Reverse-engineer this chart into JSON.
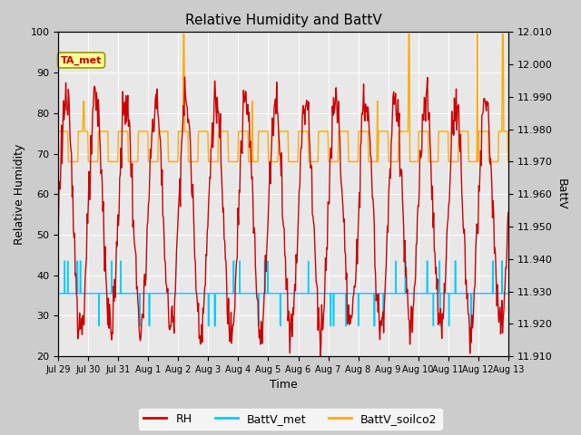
{
  "title": "Relative Humidity and BattV",
  "xlabel": "Time",
  "ylabel_left": "Relative Humidity",
  "ylabel_right": "BattV",
  "ylim_left": [
    20,
    100
  ],
  "ylim_right": [
    11.91,
    12.01
  ],
  "fig_bg_color": "#cccccc",
  "plot_bg_color": "#e8e8e8",
  "annotation_text": "TA_met",
  "annotation_color": "#cc0000",
  "annotation_bg": "#ffff99",
  "annotation_edge": "#999900",
  "rh_color": "#cc0000",
  "battv_met_color": "#00ccff",
  "battv_soilco2_color": "#ffaa00",
  "legend_rh_label": "RH",
  "legend_met_label": "BattV_met",
  "legend_soilco2_label": "BattV_soilco2",
  "x_tick_labels": [
    "Jul 29",
    "Jul 30",
    "Jul 31",
    "Aug 1",
    "Aug 2",
    "Aug 3",
    "Aug 4",
    "Aug 5",
    "Aug 6",
    "Aug 7",
    "Aug 8",
    "Aug 9",
    "Aug 10",
    "Aug 11",
    "Aug 12",
    "Aug 13"
  ],
  "y_left_ticks": [
    20,
    30,
    40,
    50,
    60,
    70,
    80,
    90,
    100
  ],
  "y_right_ticks": [
    11.91,
    11.92,
    11.93,
    11.94,
    11.95,
    11.96,
    11.97,
    11.98,
    11.99,
    12.0,
    12.01
  ],
  "n_days": 15
}
